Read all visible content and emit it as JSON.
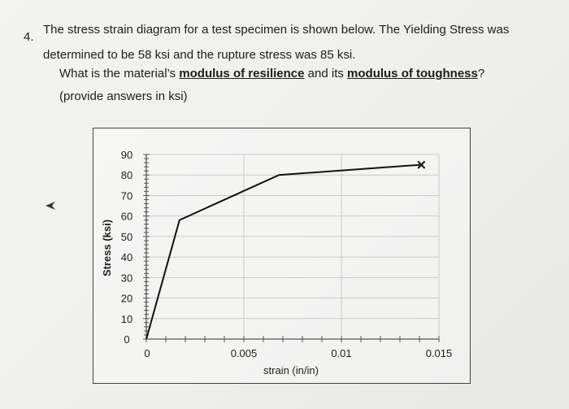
{
  "question": {
    "number": "4.",
    "line1": "The stress strain diagram for a test specimen is shown below. The Yielding Stress was",
    "line2": "determined to be 58 ksi and the rupture stress was 85 ksi.",
    "line3_pre": "What is the material’s ",
    "line3_term1": "modulus of resilience",
    "line3_mid": " and its ",
    "line3_term2": "modulus of toughness",
    "line3_post": "?",
    "line4": "(provide answers in ksi)"
  },
  "chart_data": {
    "type": "line",
    "title": "",
    "xlabel": "strain (in/in)",
    "ylabel": "Stress (ksi)",
    "xlim": [
      0,
      0.015
    ],
    "ylim": [
      0,
      90
    ],
    "x_ticks": [
      0,
      0.005,
      0.01,
      0.015
    ],
    "x_tick_labels": [
      "0",
      "0.005",
      "0.01",
      "0.015"
    ],
    "y_ticks": [
      0,
      10,
      20,
      30,
      40,
      50,
      60,
      70,
      80,
      90
    ],
    "y_tick_labels": [
      "0",
      "10",
      "20",
      "30",
      "40",
      "50",
      "60",
      "70",
      "80",
      "90"
    ],
    "grid": true,
    "series": [
      {
        "x": [
          0,
          0.0017,
          0.0068,
          0.0141
        ],
        "y": [
          0,
          58,
          80,
          85
        ]
      }
    ],
    "rupture_marker": {
      "x": 0.0141,
      "y": 85,
      "symbol": "×"
    },
    "line_color": "#111111"
  }
}
